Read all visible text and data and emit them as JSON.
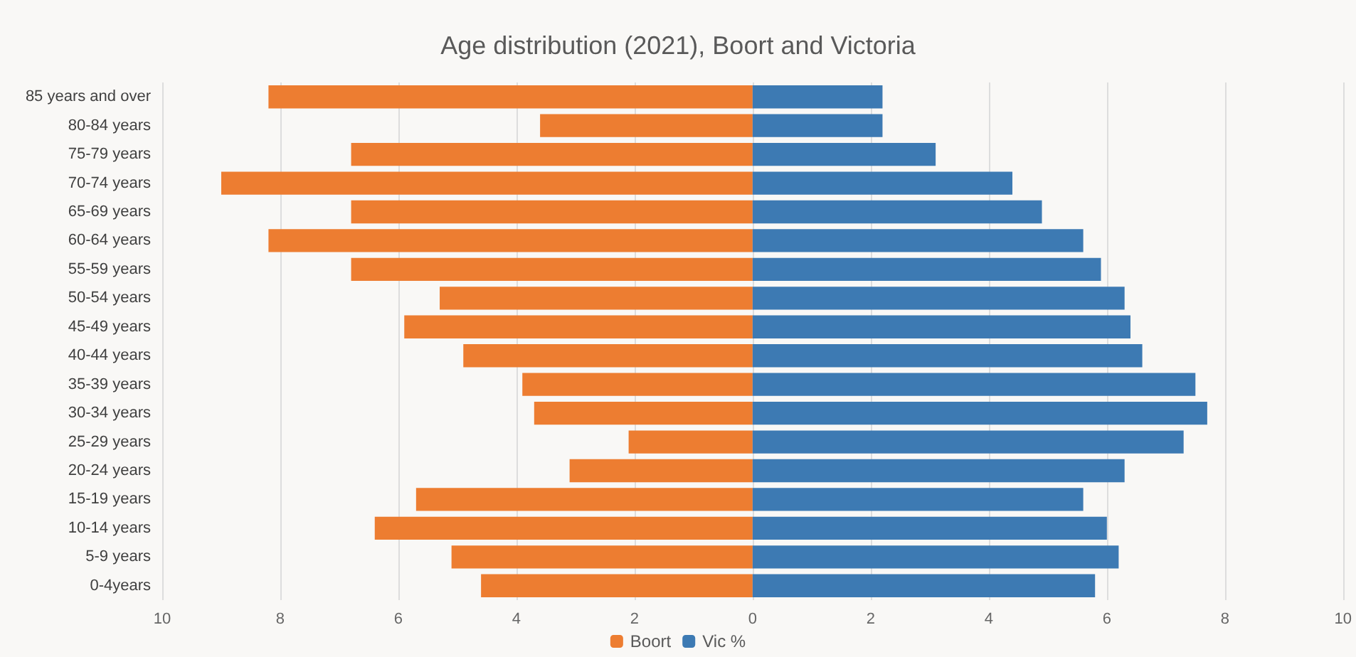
{
  "chart_data": {
    "type": "bar",
    "orientation": "horizontal",
    "stacked": true,
    "title": "Age distribution (2021), Boort and Victoria",
    "categories": [
      "85 years and over",
      "80-84 years",
      "75-79 years",
      "70-74 years",
      "65-69 years",
      "60-64 years",
      "55-59 years",
      "50-54 years",
      "45-49 years",
      "40-44 years",
      "35-39 years",
      "30-34 years",
      "25-29 years",
      "20-24 years",
      "15-19 years",
      "10-14 years",
      "5-9 years",
      "0-4years"
    ],
    "series": [
      {
        "name": "Boort",
        "color": "#ed7d31",
        "values": [
          -8.2,
          -3.6,
          -6.8,
          -9.0,
          -6.8,
          -8.2,
          -6.8,
          -5.3,
          -5.9,
          -4.9,
          -3.9,
          -3.7,
          -2.1,
          -3.1,
          -5.7,
          -6.4,
          -5.1,
          -4.6
        ]
      },
      {
        "name": "Vic %",
        "color": "#3d7ab3",
        "values": [
          2.2,
          2.2,
          3.1,
          4.4,
          4.9,
          5.6,
          5.9,
          6.3,
          6.4,
          6.6,
          7.5,
          7.7,
          7.3,
          6.3,
          5.6,
          6.0,
          6.2,
          5.8
        ]
      }
    ],
    "xlim": [
      -10,
      10
    ],
    "xticks": [
      {
        "value": -10,
        "label": "10"
      },
      {
        "value": -8,
        "label": "8"
      },
      {
        "value": -6,
        "label": "6"
      },
      {
        "value": -4,
        "label": "4"
      },
      {
        "value": -2,
        "label": "2"
      },
      0,
      2,
      4,
      6,
      8,
      10
    ],
    "grid": "x",
    "legend": "bottom"
  }
}
